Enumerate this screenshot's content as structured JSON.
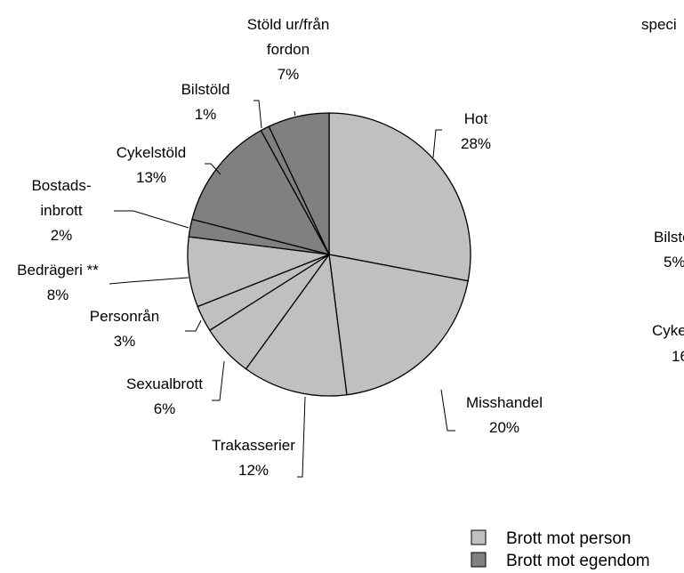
{
  "chart_data": {
    "type": "pie",
    "title": "",
    "slices": [
      {
        "label_lines": [
          "Hot"
        ],
        "value": 28,
        "value_label": "28%",
        "group": "person"
      },
      {
        "label_lines": [
          "Misshandel"
        ],
        "value": 20,
        "value_label": "20%",
        "group": "person"
      },
      {
        "label_lines": [
          "Trakasserier"
        ],
        "value": 12,
        "value_label": "12%",
        "group": "person"
      },
      {
        "label_lines": [
          "Sexualbrott"
        ],
        "value": 6,
        "value_label": "6%",
        "group": "person"
      },
      {
        "label_lines": [
          "Personrån"
        ],
        "value": 3,
        "value_label": "3%",
        "group": "person"
      },
      {
        "label_lines": [
          "Bedrägeri **"
        ],
        "value": 8,
        "value_label": "8%",
        "group": "person"
      },
      {
        "label_lines": [
          "Bostads-",
          "inbrott"
        ],
        "value": 2,
        "value_label": "2%",
        "group": "property"
      },
      {
        "label_lines": [
          "Cykelstöld"
        ],
        "value": 13,
        "value_label": "13%",
        "group": "property"
      },
      {
        "label_lines": [
          "Bilstöld"
        ],
        "value": 1,
        "value_label": "1%",
        "group": "property"
      },
      {
        "label_lines": [
          "Stöld ur/från",
          "fordon"
        ],
        "value": 7,
        "value_label": "7%",
        "group": "property"
      }
    ],
    "legend": [
      {
        "group": "person",
        "label": "Brott mot person",
        "color": "#c0c0c0"
      },
      {
        "group": "property",
        "label": "Brott mot egendom",
        "color": "#808080"
      }
    ],
    "legend_position": "bottom-right",
    "start": "12 o'clock, clockwise",
    "cut_off_chart_fragments": [
      {
        "text": "speci"
      },
      {
        "text": "Bilsto"
      },
      {
        "text": "5%"
      },
      {
        "text": "Cyke"
      },
      {
        "text": "16"
      }
    ]
  }
}
